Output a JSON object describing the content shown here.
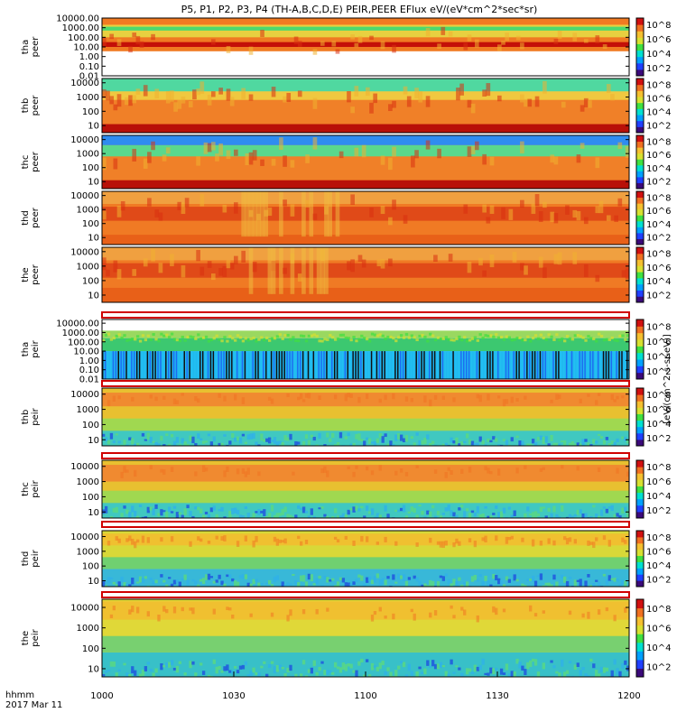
{
  "chart_data": {
    "type": "heatmap",
    "title": "P5, P1, P2, P3, P4 (TH-A,B,C,D,E) PEIR,PEER EFlux eV/(eV*cm^2*sec*sr)",
    "x_axis": {
      "label_time": "hhmm",
      "label_date": "2017 Mar 11",
      "ticks": [
        "1000",
        "1030",
        "1100",
        "1130",
        "1200"
      ],
      "range_minutes": [
        0,
        120
      ]
    },
    "colorbar": {
      "label": "[eV/(cm^2-s-sr-eV)]",
      "ticks": [
        "10^2",
        "10^4",
        "10^6",
        "10^8"
      ],
      "colors": [
        "#3b0a7a",
        "#2040ff",
        "#00a0ff",
        "#00e0d0",
        "#40e040",
        "#d8e030",
        "#f5c030",
        "#f07020",
        "#d01010"
      ]
    },
    "panels": [
      {
        "label": "tha peer",
        "y_ticks": [
          "10000.00",
          "1000.00",
          "100.00",
          "10.00",
          "1.00",
          "0.10",
          "0.01"
        ],
        "log_range": [
          -2,
          4
        ],
        "species": "electron",
        "bands": [
          [
            0.55,
            4.35,
            "#f07a22"
          ],
          [
            1.0,
            1.5,
            "#c41008"
          ],
          [
            2.0,
            3.3,
            "#e8d040"
          ],
          [
            2.7,
            3.1,
            "#4cd870"
          ]
        ]
      },
      {
        "label": "thb peer",
        "y_ticks": [
          "10000",
          "1000",
          "100",
          "10"
        ],
        "log_range": [
          0.5,
          4.3
        ],
        "species": "electron",
        "bands": [
          [
            0.5,
            4.3,
            "#f08028"
          ],
          [
            0.5,
            1.1,
            "#b81008"
          ],
          [
            3.3,
            4.3,
            "#50d8a0"
          ],
          [
            2.8,
            3.4,
            "#f0c840"
          ]
        ]
      },
      {
        "label": "thc peer",
        "y_ticks": [
          "10000",
          "1000",
          "100",
          "10"
        ],
        "log_range": [
          0.5,
          4.3
        ],
        "species": "electron",
        "bands": [
          [
            0.5,
            4.3,
            "#f08028"
          ],
          [
            0.5,
            1.1,
            "#b81008"
          ],
          [
            3.6,
            4.3,
            "#2f8cf0"
          ],
          [
            2.8,
            3.6,
            "#5ad88c"
          ]
        ]
      },
      {
        "label": "thd peer",
        "y_ticks": [
          "10000",
          "1000",
          "100",
          "10"
        ],
        "log_range": [
          0.5,
          4.3
        ],
        "species": "electron",
        "bands": [
          [
            0.5,
            4.3,
            "#f07a24"
          ],
          [
            0.5,
            1.2,
            "#e86018"
          ],
          [
            3.4,
            4.3,
            "#f0a040"
          ],
          [
            2.2,
            3.2,
            "#e04a18"
          ]
        ]
      },
      {
        "label": "the peer",
        "y_ticks": [
          "10000",
          "1000",
          "100",
          "10"
        ],
        "log_range": [
          0.5,
          4.3
        ],
        "species": "electron",
        "bands": [
          [
            0.5,
            4.3,
            "#f07a24"
          ],
          [
            0.5,
            1.5,
            "#e86018"
          ],
          [
            3.4,
            4.3,
            "#f0a040"
          ],
          [
            2.2,
            3.2,
            "#e04a18"
          ]
        ]
      },
      {
        "label": "tha peir",
        "y_ticks": [
          "10000.00",
          "1000.00",
          "100.00",
          "10.00",
          "1.00",
          "0.10",
          "0.01"
        ],
        "log_range": [
          -2,
          4.4
        ],
        "species": "ion",
        "bands": [
          [
            -2,
            4.4,
            "#ffffff"
          ],
          [
            -2,
            1.0,
            "#20b8f0"
          ],
          [
            1.0,
            2.4,
            "#3cc870"
          ],
          [
            2.4,
            3.2,
            "#9ad860"
          ]
        ]
      },
      {
        "label": "thb peir",
        "y_ticks": [
          "10000",
          "1000",
          "100",
          "10"
        ],
        "log_range": [
          0.6,
          4.4
        ],
        "species": "ion",
        "bands": [
          [
            0.6,
            4.4,
            "#e8c030"
          ],
          [
            0.6,
            1.6,
            "#40c8c0"
          ],
          [
            1.6,
            2.4,
            "#a0d850"
          ],
          [
            3.2,
            4.1,
            "#f08a30"
          ]
        ]
      },
      {
        "label": "thc peir",
        "y_ticks": [
          "10000",
          "1000",
          "100",
          "10"
        ],
        "log_range": [
          0.6,
          4.4
        ],
        "species": "ion",
        "bands": [
          [
            0.6,
            4.4,
            "#e8c030"
          ],
          [
            0.6,
            1.6,
            "#40c8c0"
          ],
          [
            1.6,
            2.4,
            "#a0d850"
          ],
          [
            3.0,
            4.1,
            "#f08a30"
          ]
        ]
      },
      {
        "label": "thd peir",
        "y_ticks": [
          "10000",
          "1000",
          "100",
          "10"
        ],
        "log_range": [
          0.6,
          4.4
        ],
        "species": "ion",
        "bands": [
          [
            0.6,
            4.4,
            "#d8d838"
          ],
          [
            0.6,
            1.8,
            "#38b8d8"
          ],
          [
            1.8,
            2.6,
            "#70d070"
          ],
          [
            3.4,
            4.2,
            "#f0c030"
          ]
        ]
      },
      {
        "label": "the peir",
        "y_ticks": [
          "10000",
          "1000",
          "100",
          "10"
        ],
        "log_range": [
          0.6,
          4.4
        ],
        "species": "ion",
        "bands": [
          [
            0.6,
            4.4,
            "#e0d838"
          ],
          [
            0.6,
            1.8,
            "#38c0c8"
          ],
          [
            1.8,
            2.6,
            "#78d070"
          ],
          [
            3.4,
            4.3,
            "#f0c030"
          ]
        ]
      }
    ]
  }
}
